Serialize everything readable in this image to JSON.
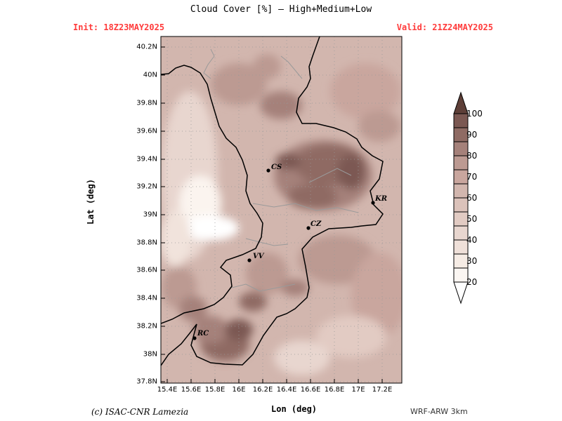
{
  "header": {
    "title": "Cloud Cover [%] — High+Medium+Low",
    "init": "Init: 18Z23MAY2025",
    "valid": "Valid: 21Z24MAY2025"
  },
  "axes": {
    "xlabel": "Lon (deg)",
    "ylabel": "Lat (deg)",
    "x_ticks": [
      "15.4E",
      "15.6E",
      "15.8E",
      "16E",
      "16.2E",
      "16.4E",
      "16.6E",
      "16.8E",
      "17E",
      "17.2E"
    ],
    "y_ticks": [
      "40.2N",
      "40N",
      "39.8N",
      "39.6N",
      "39.4N",
      "39.2N",
      "39N",
      "38.8N",
      "38.6N",
      "38.4N",
      "38.2N",
      "38N",
      "37.8N"
    ]
  },
  "colorbar": {
    "levels": [
      "100",
      "90",
      "80",
      "70",
      "60",
      "50",
      "40",
      "30",
      "20"
    ],
    "colors": [
      "#5e3f38",
      "#7b5852",
      "#8f6b64",
      "#a5817a",
      "#bc9a92",
      "#d2b6ae",
      "#e8d6cf",
      "#f6ece5",
      "#ffffff"
    ]
  },
  "cities": [
    {
      "code": "CS"
    },
    {
      "code": "KR"
    },
    {
      "code": "CZ"
    },
    {
      "code": "VV"
    },
    {
      "code": "RC"
    }
  ],
  "footer": {
    "credit": "(c) ISAC-CNR Lamezia",
    "model": "WRF-ARW 3km"
  }
}
